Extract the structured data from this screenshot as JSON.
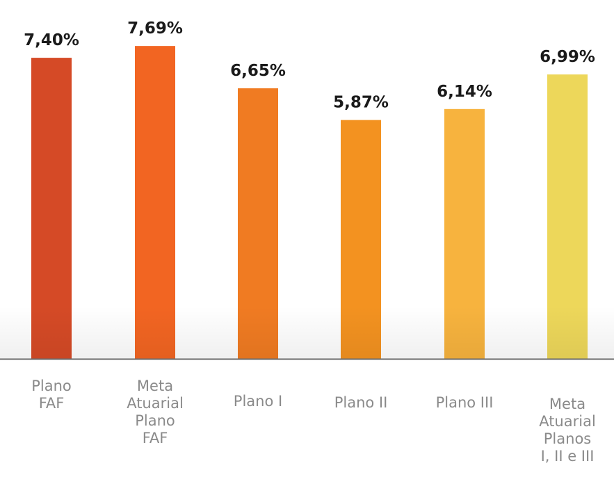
{
  "chart_data": {
    "type": "bar",
    "title": "",
    "xlabel": "",
    "ylabel": "",
    "categories": [
      [
        "Plano",
        "FAF"
      ],
      [
        "Meta",
        "Atuarial",
        "Plano",
        "FAF"
      ],
      [
        "Plano I"
      ],
      [
        "Plano II"
      ],
      [
        "Plano III"
      ],
      [
        "Meta",
        "Atuarial",
        "Planos",
        "I, II e III"
      ]
    ],
    "values": [
      7.4,
      7.69,
      6.65,
      5.87,
      6.14,
      6.99
    ],
    "value_labels": [
      "7,40%",
      "7,69%",
      "6,65%",
      "5,87%",
      "6,14%",
      "6,99%"
    ],
    "colors": [
      "#D54A26",
      "#F26522",
      "#F07B22",
      "#F39220",
      "#F7B33E",
      "#EDD75A"
    ],
    "ylim": [
      0,
      8.4
    ],
    "grid": false,
    "legend": "none"
  }
}
